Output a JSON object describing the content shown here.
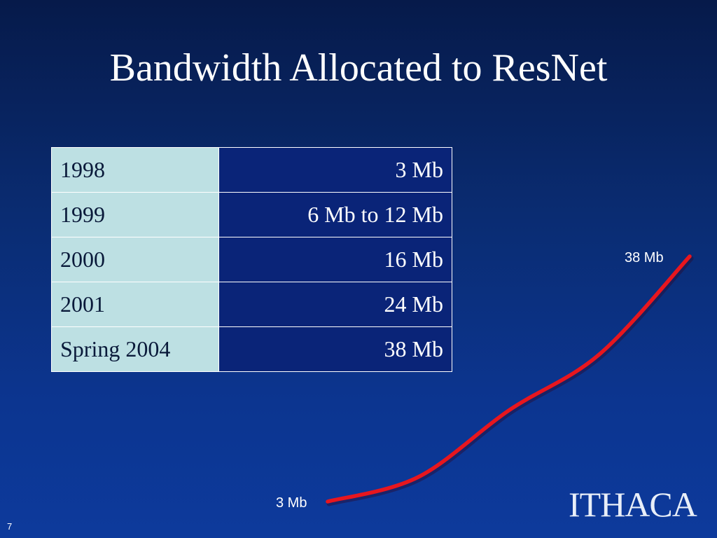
{
  "slide": {
    "title": "Bandwidth Allocated to ResNet",
    "page_number": "7",
    "logo_text": "ITHACA"
  },
  "table": {
    "rows": [
      {
        "year": "1998",
        "value": "3 Mb"
      },
      {
        "year": "1999",
        "value": "6 Mb to 12 Mb"
      },
      {
        "year": "2000",
        "value": "16 Mb"
      },
      {
        "year": "2001",
        "value": "24 Mb"
      },
      {
        "year": "Spring 2004",
        "value": "38 Mb"
      }
    ]
  },
  "colors": {
    "year_cell": "#bde0e3",
    "value_cell": "#0a2478",
    "trend_line": "#e8161e",
    "background": "#0a2c72"
  },
  "chart_data": {
    "type": "line",
    "title": "",
    "xlabel": "",
    "ylabel": "",
    "grid": false,
    "ylim": [
      3,
      38
    ],
    "series": [
      {
        "values": [
          3,
          6.5,
          16,
          24,
          38
        ]
      }
    ],
    "annotations": {
      "start_label": "3 Mb",
      "end_label": "38 Mb"
    }
  }
}
